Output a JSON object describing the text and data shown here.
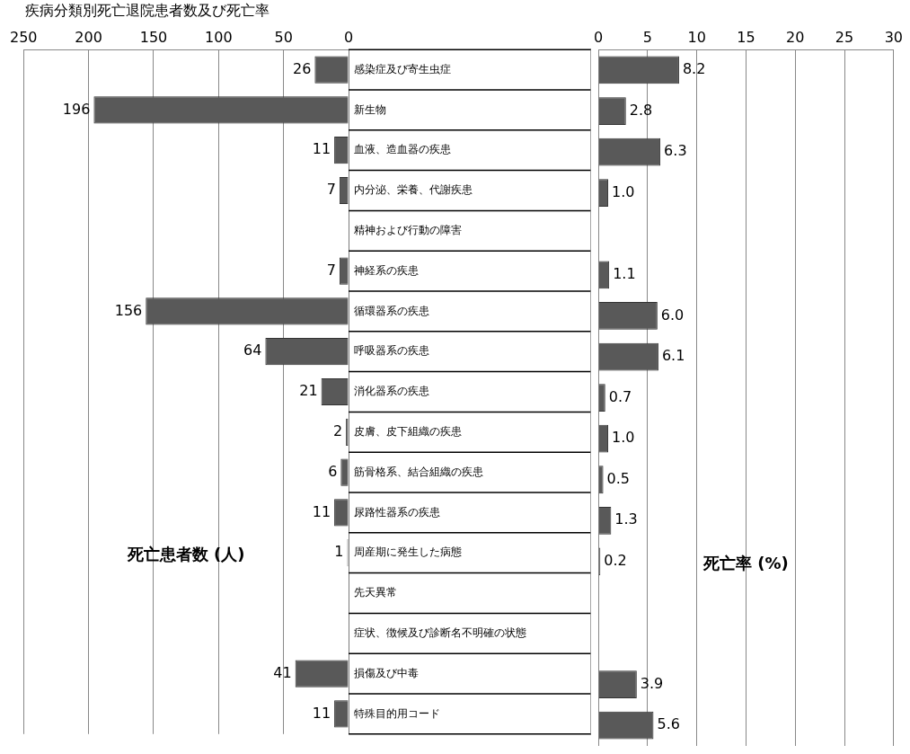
{
  "chart_data": [
    {
      "type": "bar",
      "orientation": "horizontal",
      "title": "疾病分類別死亡退院患者数及び死亡率",
      "xlabel": "死亡患者数 (人)",
      "categories": [
        "感染症及び寄生虫症",
        "新生物",
        "血液、造血器の疾患",
        "内分泌、栄養、代謝疾患",
        "精神および行動の障害",
        "神経系の疾患",
        "循環器系の疾患",
        "呼吸器系の疾患",
        "消化器系の疾患",
        "皮膚、皮下組織の疾患",
        "筋骨格系、結合組織の疾患",
        "尿路性器系の疾患",
        "周産期に発生した病態",
        "先天異常",
        "症状、徴候及び診断名不明確の状態",
        "損傷及び中毒",
        "特殊目的用コード"
      ],
      "values": [
        26,
        196,
        11,
        7,
        null,
        7,
        156,
        64,
        21,
        2,
        6,
        11,
        1,
        null,
        null,
        41,
        11
      ],
      "value_labels": [
        "26",
        "196",
        "11",
        "7",
        null,
        "7",
        "156",
        "64",
        "21",
        "2",
        "6",
        "11",
        "1",
        null,
        null,
        "41",
        "11"
      ],
      "color": "#595959",
      "xlim": [
        250,
        0
      ],
      "xticks": [
        250,
        200,
        150,
        100,
        50,
        0
      ],
      "grid": "x"
    },
    {
      "type": "bar",
      "orientation": "horizontal",
      "xlabel": "死亡率 (%)",
      "values": [
        8.2,
        2.8,
        6.3,
        1.0,
        null,
        1.1,
        6.0,
        6.1,
        0.7,
        1.0,
        0.5,
        1.3,
        0.2,
        null,
        null,
        3.9,
        5.6
      ],
      "value_labels": [
        "8.2",
        "2.8",
        "6.3",
        "1.0",
        null,
        "1.1",
        "6.0",
        "6.1",
        "0.7",
        "1.0",
        "0.5",
        "1.3",
        "0.2",
        null,
        null,
        "3.9",
        "5.6"
      ],
      "color": "#595959",
      "xlim": [
        0,
        30
      ],
      "xticks": [
        0,
        5,
        10,
        15,
        20,
        25,
        30
      ],
      "grid": "x",
      "tick_labels": "x"
    }
  ]
}
